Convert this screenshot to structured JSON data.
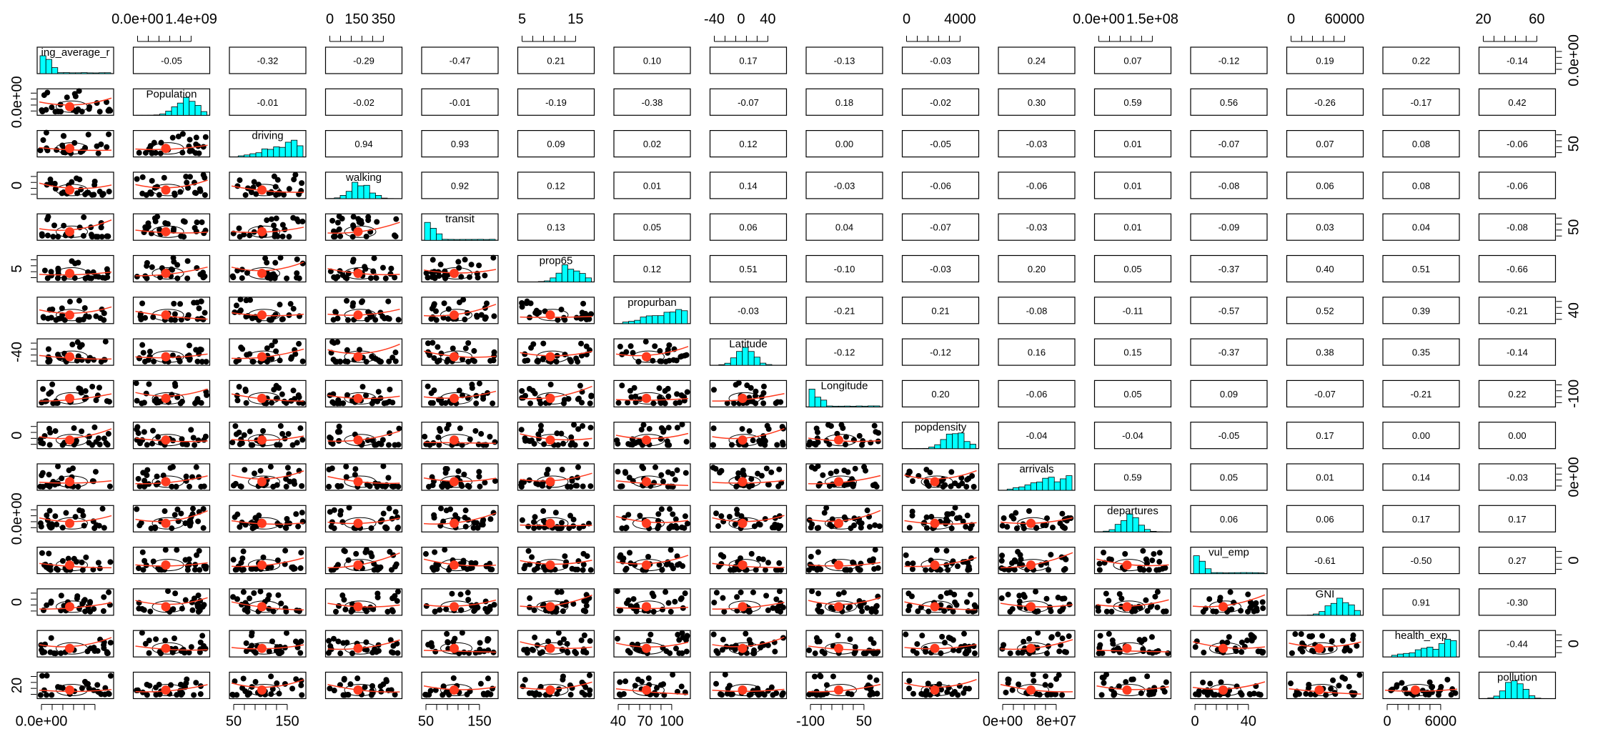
{
  "chart_data": {
    "type": "scatter",
    "title": "",
    "variables": [
      "ing_average_r",
      "Population",
      "driving",
      "walking",
      "transit",
      "prop65",
      "propurban",
      "Latitude",
      "Longitude",
      "popdensity",
      "arrivals",
      "departures",
      "vul_emp",
      "GNI",
      "health_exp",
      "pollution"
    ],
    "correlation_matrix_upper": [
      [
        null,
        -0.05,
        -0.32,
        -0.29,
        -0.47,
        0.21,
        0.1,
        0.17,
        -0.13,
        -0.03,
        0.24,
        0.07,
        -0.12,
        0.19,
        0.22,
        -0.14
      ],
      [
        null,
        null,
        -0.01,
        -0.02,
        -0.01,
        -0.19,
        -0.38,
        -0.07,
        0.18,
        -0.02,
        0.3,
        0.59,
        0.56,
        -0.26,
        -0.17,
        0.42
      ],
      [
        null,
        null,
        null,
        0.94,
        0.93,
        0.09,
        0.02,
        0.12,
        0.0,
        -0.05,
        -0.03,
        0.01,
        -0.07,
        0.07,
        0.08,
        -0.06
      ],
      [
        null,
        null,
        null,
        null,
        0.92,
        0.12,
        0.01,
        0.14,
        -0.03,
        -0.06,
        -0.06,
        0.01,
        -0.08,
        0.06,
        0.08,
        -0.06
      ],
      [
        null,
        null,
        null,
        null,
        null,
        0.13,
        0.05,
        0.06,
        0.04,
        -0.07,
        -0.03,
        0.01,
        -0.09,
        0.03,
        0.04,
        -0.08
      ],
      [
        null,
        null,
        null,
        null,
        null,
        null,
        0.12,
        0.51,
        -0.1,
        -0.03,
        0.2,
        0.05,
        -0.37,
        0.4,
        0.51,
        -0.66
      ],
      [
        null,
        null,
        null,
        null,
        null,
        null,
        null,
        -0.03,
        -0.21,
        0.21,
        -0.08,
        -0.11,
        -0.57,
        0.52,
        0.39,
        -0.21
      ],
      [
        null,
        null,
        null,
        null,
        null,
        null,
        null,
        null,
        -0.12,
        -0.12,
        0.16,
        0.15,
        -0.37,
        0.38,
        0.35,
        -0.14
      ],
      [
        null,
        null,
        null,
        null,
        null,
        null,
        null,
        null,
        null,
        0.2,
        -0.06,
        0.05,
        0.09,
        -0.07,
        -0.21,
        0.22
      ],
      [
        null,
        null,
        null,
        null,
        null,
        null,
        null,
        null,
        null,
        null,
        -0.04,
        -0.04,
        -0.05,
        0.17,
        0.0,
        0.0
      ],
      [
        null,
        null,
        null,
        null,
        null,
        null,
        null,
        null,
        null,
        null,
        null,
        0.59,
        0.05,
        0.01,
        0.14,
        -0.03
      ],
      [
        null,
        null,
        null,
        null,
        null,
        null,
        null,
        null,
        null,
        null,
        null,
        null,
        0.06,
        0.06,
        0.17,
        0.17
      ],
      [
        null,
        null,
        null,
        null,
        null,
        null,
        null,
        null,
        null,
        null,
        null,
        null,
        null,
        -0.61,
        -0.5,
        0.27
      ],
      [
        null,
        null,
        null,
        null,
        null,
        null,
        null,
        null,
        null,
        null,
        null,
        null,
        null,
        null,
        0.91,
        -0.3
      ],
      [
        null,
        null,
        null,
        null,
        null,
        null,
        null,
        null,
        null,
        null,
        null,
        null,
        null,
        null,
        null,
        -0.44
      ],
      [
        null,
        null,
        null,
        null,
        null,
        null,
        null,
        null,
        null,
        null,
        null,
        null,
        null,
        null,
        null,
        null
      ]
    ],
    "top_axis_ticks": [
      {
        "col": 1,
        "labels": [
          "0.0e+00",
          "1.4e+09"
        ]
      },
      {
        "col": 3,
        "labels": [
          "0",
          "150",
          "350"
        ]
      },
      {
        "col": 5,
        "labels": [
          "5",
          "15"
        ]
      },
      {
        "col": 7,
        "labels": [
          "-40",
          "0",
          "40"
        ]
      },
      {
        "col": 9,
        "labels": [
          "0",
          "4000"
        ]
      },
      {
        "col": 11,
        "labels": [
          "0.0e+00",
          "1.5e+08"
        ]
      },
      {
        "col": 13,
        "labels": [
          "0",
          "60000"
        ]
      },
      {
        "col": 15,
        "labels": [
          "20",
          "60"
        ]
      }
    ],
    "bottom_axis_ticks": [
      {
        "col": 0,
        "labels": [
          "0.0e+00"
        ]
      },
      {
        "col": 2,
        "labels": [
          "50",
          "150"
        ]
      },
      {
        "col": 4,
        "labels": [
          "50",
          "150"
        ]
      },
      {
        "col": 6,
        "labels": [
          "40",
          "70",
          "100"
        ]
      },
      {
        "col": 8,
        "labels": [
          "-100",
          "50"
        ]
      },
      {
        "col": 10,
        "labels": [
          "0e+00",
          "8e+07"
        ]
      },
      {
        "col": 12,
        "labels": [
          "0",
          "40"
        ]
      },
      {
        "col": 14,
        "labels": [
          "0",
          "6000"
        ]
      }
    ],
    "left_axis_ticks": [
      {
        "row": 1,
        "labels": [
          "0.0e+00"
        ]
      },
      {
        "row": 3,
        "labels": [
          "0"
        ]
      },
      {
        "row": 5,
        "labels": [
          "5"
        ]
      },
      {
        "row": 7,
        "labels": [
          "-40"
        ]
      },
      {
        "row": 9,
        "labels": [
          "0"
        ]
      },
      {
        "row": 11,
        "labels": [
          "0.0e+00"
        ]
      },
      {
        "row": 13,
        "labels": [
          "0"
        ]
      },
      {
        "row": 15,
        "labels": [
          "20"
        ]
      }
    ],
    "right_axis_ticks": [
      {
        "row": 0,
        "labels": [
          "0.0e+00"
        ]
      },
      {
        "row": 2,
        "labels": [
          "50"
        ]
      },
      {
        "row": 4,
        "labels": [
          "50"
        ]
      },
      {
        "row": 6,
        "labels": [
          "40"
        ]
      },
      {
        "row": 8,
        "labels": [
          "-100"
        ]
      },
      {
        "row": 10,
        "labels": [
          "0e+00"
        ]
      },
      {
        "row": 12,
        "labels": [
          "0"
        ]
      },
      {
        "row": 14,
        "labels": [
          "0"
        ]
      }
    ],
    "colors": {
      "histogram": "#00ffff",
      "loess": "#ff3b1f",
      "points": "#000000"
    }
  }
}
